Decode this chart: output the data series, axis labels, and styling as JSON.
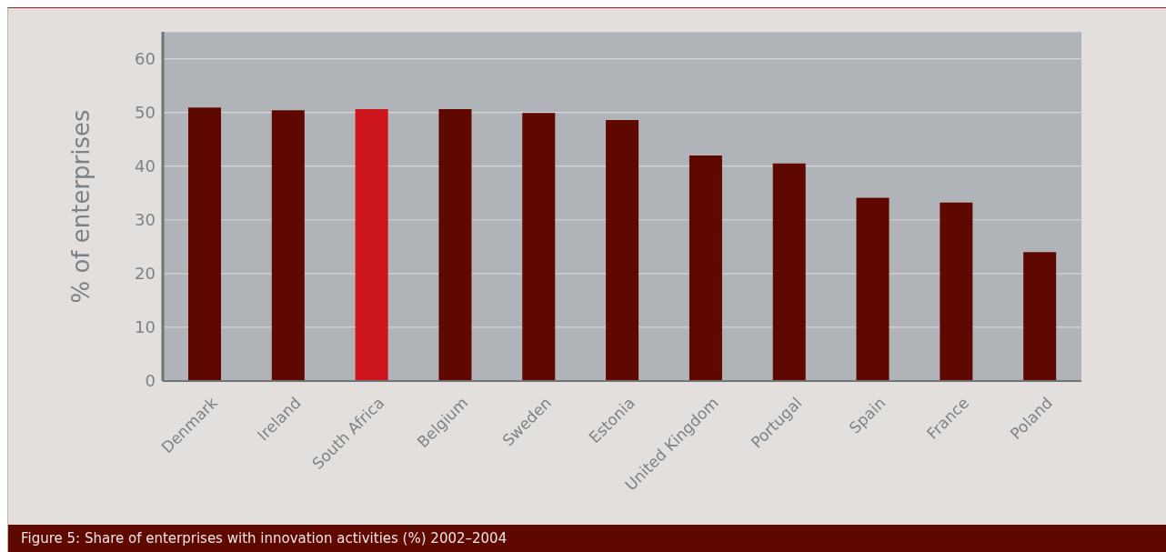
{
  "chart_data": {
    "type": "bar",
    "title": "Figure 5: Share of enterprises with innovation activities (%) 2002–2004",
    "ylabel": "% of enterprises",
    "categories": [
      "Denmark",
      "Ireland",
      "South Africa",
      "Belgium",
      "Sweden",
      "Estonia",
      "United Kingdom",
      "Portugal",
      "Spain",
      "France",
      "Poland"
    ],
    "values": [
      50.9,
      50.4,
      50.6,
      50.6,
      49.9,
      48.6,
      42.0,
      40.5,
      34.1,
      33.2,
      24.0
    ],
    "colors": [
      "#5f0800",
      "#5f0800",
      "#cc151c",
      "#5f0800",
      "#5f0800",
      "#5f0800",
      "#5f0800",
      "#5f0800",
      "#5f0800",
      "#5f0800",
      "#5f0800"
    ],
    "ylim": [
      0,
      65
    ],
    "yticks": [
      0,
      10,
      20,
      30,
      40,
      50,
      60
    ],
    "grid": "y"
  }
}
